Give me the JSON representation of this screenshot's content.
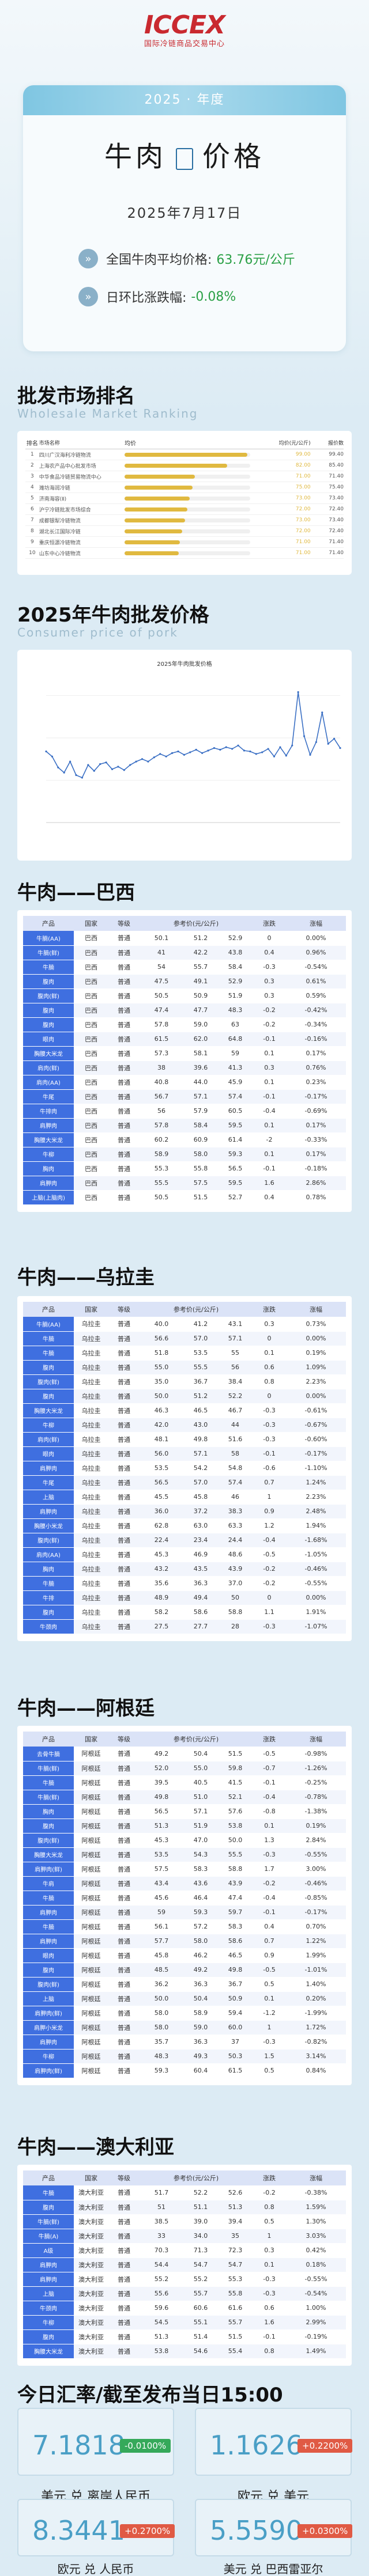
{
  "logo": {
    "mark": "ICCEX",
    "sub": "国际冷链商品交易中心"
  },
  "header": {
    "year": "2025 · 年度",
    "title_left": "牛肉",
    "title_right": "价格",
    "date": "2025年7月17日",
    "avg_label": "全国牛肉平均价格:",
    "avg_value": "63.76元/公斤",
    "chg_label": "日环比涨跌幅:",
    "chg_value": "-0.08%"
  },
  "ranking": {
    "title": "批发市场排名",
    "subtitle": "Wholesale Market Ranking",
    "headers": [
      "排名",
      "市场名称",
      "均价",
      "均价(元/公斤)",
      "报价数"
    ],
    "rows": [
      {
        "no": "1",
        "name": "四川广汉海利冷链物流",
        "fill": 0.98,
        "price": "99.00",
        "cnt": "99.40"
      },
      {
        "no": "2",
        "name": "上海农产品中心批发市场",
        "fill": 0.82,
        "price": "82.00",
        "cnt": "85.40"
      },
      {
        "no": "3",
        "name": "中华食品冷链贸易物流中心",
        "fill": 0.56,
        "price": "71.00",
        "cnt": "71.40"
      },
      {
        "no": "4",
        "name": "潍坊海润冷链",
        "fill": 0.54,
        "price": "75.00",
        "cnt": "75.40"
      },
      {
        "no": "5",
        "name": "济南海容(Ⅱ)",
        "fill": 0.52,
        "price": "73.00",
        "cnt": "73.40"
      },
      {
        "no": "6",
        "name": "沪宁冷链批发市场综合",
        "fill": 0.5,
        "price": "72.00",
        "cnt": "72.40"
      },
      {
        "no": "7",
        "name": "成都银犁冷链物流",
        "fill": 0.48,
        "price": "73.00",
        "cnt": "73.40"
      },
      {
        "no": "8",
        "name": "湖北长江国际冷链",
        "fill": 0.46,
        "price": "72.00",
        "cnt": "72.40"
      },
      {
        "no": "9",
        "name": "重庆恒源冷链物流",
        "fill": 0.44,
        "price": "71.00",
        "cnt": "71.40"
      },
      {
        "no": "10",
        "name": "山东中心冷链物流",
        "fill": 0.43,
        "price": "71.00",
        "cnt": "71.40"
      }
    ]
  },
  "trend": {
    "title": "2025年牛肉批发价格",
    "subtitle": "Consumer price of pork"
  },
  "chart_data": {
    "type": "line",
    "title": "2025年牛肉批发价格",
    "ylabel": "",
    "ylim": [
      55,
      72
    ],
    "values": [
      63.4,
      62.8,
      61.5,
      60.9,
      62.2,
      60.6,
      60.3,
      61.8,
      61.1,
      61.9,
      62.1,
      61.3,
      61.6,
      61.2,
      61.8,
      62.2,
      62.5,
      62.2,
      62.7,
      63.1,
      62.8,
      63.2,
      63.4,
      63.0,
      63.3,
      63.6,
      63.2,
      63.5,
      63.8,
      63.6,
      63.9,
      63.7,
      64.1,
      63.5,
      63.4,
      63.1,
      63.3,
      63.7,
      62.8,
      63.9,
      62.9,
      64.1,
      70.4,
      65.2,
      63.0,
      64.5,
      68.0,
      64.3,
      64.9,
      63.8
    ]
  },
  "brazil": {
    "title": "牛肉——巴西",
    "headers": [
      "产品",
      "国家",
      "等级",
      "参考价(元/公斤)",
      "",
      "",
      "涨跌",
      "涨幅"
    ],
    "rows": [
      [
        "牛腩(AA)",
        "巴西",
        "普通",
        "50.1",
        "51.2",
        "52.9",
        "0",
        "0.00%"
      ],
      [
        "牛腩(鲜)",
        "巴西",
        "普通",
        "41",
        "42.2",
        "43.8",
        "0.4",
        "0.96%"
      ],
      [
        "牛腩",
        "巴西",
        "普通",
        "54",
        "55.7",
        "58.4",
        "-0.3",
        "-0.54%"
      ],
      [
        "腹肉",
        "巴西",
        "普通",
        "47.5",
        "49.1",
        "52.9",
        "0.3",
        "0.61%"
      ],
      [
        "腹肉(鲜)",
        "巴西",
        "普通",
        "50.5",
        "50.9",
        "51.9",
        "0.3",
        "0.59%"
      ],
      [
        "腹肉",
        "巴西",
        "普通",
        "47.4",
        "47.7",
        "48.3",
        "-0.2",
        "-0.42%"
      ],
      [
        "腹肉",
        "巴西",
        "普通",
        "57.8",
        "59.0",
        "63",
        "-0.2",
        "-0.34%"
      ],
      [
        "眼肉",
        "巴西",
        "普通",
        "61.5",
        "62.0",
        "64.8",
        "-0.1",
        "-0.16%"
      ],
      [
        "胸腰大米龙",
        "巴西",
        "普通",
        "57.3",
        "58.1",
        "59",
        "0.1",
        "0.17%"
      ],
      [
        "肩肉(鲜)",
        "巴西",
        "普通",
        "38",
        "39.6",
        "41.3",
        "0.3",
        "0.76%"
      ],
      [
        "肩肉(AA)",
        "巴西",
        "普通",
        "40.8",
        "44.0",
        "45.9",
        "0.1",
        "0.23%"
      ],
      [
        "牛尾",
        "巴西",
        "普通",
        "56.7",
        "57.1",
        "57.4",
        "-0.1",
        "-0.17%"
      ],
      [
        "牛排肉",
        "巴西",
        "普通",
        "56",
        "57.9",
        "60.5",
        "-0.4",
        "-0.69%"
      ],
      [
        "肩胛肉",
        "巴西",
        "普通",
        "57.8",
        "58.4",
        "59.5",
        "0.1",
        "0.17%"
      ],
      [
        "胸腰大米龙",
        "巴西",
        "普通",
        "60.2",
        "60.9",
        "61.4",
        "-2",
        "-0.33%"
      ],
      [
        "牛柳",
        "巴西",
        "普通",
        "58.9",
        "58.0",
        "59.3",
        "0.1",
        "0.17%"
      ],
      [
        "胸肉",
        "巴西",
        "普通",
        "55.3",
        "55.8",
        "56.5",
        "-0.1",
        "-0.18%"
      ],
      [
        "肩胛肉",
        "巴西",
        "普通",
        "55.5",
        "57.5",
        "59.5",
        "1.6",
        "2.86%"
      ],
      [
        "上脑(上脑肉)",
        "巴西",
        "普通",
        "50.5",
        "51.5",
        "52.7",
        "0.4",
        "0.78%"
      ]
    ]
  },
  "uruguay": {
    "title": "牛肉——乌拉圭",
    "headers": [
      "产品",
      "国家",
      "等级",
      "参考价(元/公斤)",
      "",
      "",
      "涨跌",
      "涨幅"
    ],
    "rows": [
      [
        "牛腩(AA)",
        "乌拉圭",
        "普通",
        "40.0",
        "41.2",
        "43.1",
        "0.3",
        "0.73%"
      ],
      [
        "牛腩",
        "乌拉圭",
        "普通",
        "56.6",
        "57.0",
        "57.1",
        "0",
        "0.00%"
      ],
      [
        "牛腩",
        "乌拉圭",
        "普通",
        "51.8",
        "53.5",
        "55",
        "0.1",
        "0.19%"
      ],
      [
        "腹肉",
        "乌拉圭",
        "普通",
        "55.0",
        "55.5",
        "56",
        "0.6",
        "1.09%"
      ],
      [
        "腹肉(鲜)",
        "乌拉圭",
        "普通",
        "35.0",
        "36.7",
        "38.4",
        "0.8",
        "2.23%"
      ],
      [
        "腹肉",
        "乌拉圭",
        "普通",
        "50.0",
        "51.2",
        "52.2",
        "0",
        "0.00%"
      ],
      [
        "胸腰大米龙",
        "乌拉圭",
        "普通",
        "46.3",
        "46.5",
        "46.7",
        "-0.3",
        "-0.61%"
      ],
      [
        "牛柳",
        "乌拉圭",
        "普通",
        "42.0",
        "43.0",
        "44",
        "-0.3",
        "-0.67%"
      ],
      [
        "肩肉(鲜)",
        "乌拉圭",
        "普通",
        "48.1",
        "49.8",
        "51.6",
        "-0.3",
        "-0.60%"
      ],
      [
        "眼肉",
        "乌拉圭",
        "普通",
        "56.0",
        "57.1",
        "58",
        "-0.1",
        "-0.17%"
      ],
      [
        "肩胛肉",
        "乌拉圭",
        "普通",
        "53.5",
        "54.2",
        "54.8",
        "-0.6",
        "-1.10%"
      ],
      [
        "牛尾",
        "乌拉圭",
        "普通",
        "56.5",
        "57.0",
        "57.4",
        "0.7",
        "1.24%"
      ],
      [
        "上脑",
        "乌拉圭",
        "普通",
        "45.5",
        "45.8",
        "46",
        "1",
        "2.23%"
      ],
      [
        "肩胛肉",
        "乌拉圭",
        "普通",
        "36.0",
        "37.2",
        "38.3",
        "0.9",
        "2.48%"
      ],
      [
        "胸腰小米龙",
        "乌拉圭",
        "普通",
        "62.8",
        "63.0",
        "63.3",
        "1.2",
        "1.94%"
      ],
      [
        "腹肉(鲜)",
        "乌拉圭",
        "普通",
        "22.4",
        "23.4",
        "24.4",
        "-0.4",
        "-1.68%"
      ],
      [
        "肩肉(AA)",
        "乌拉圭",
        "普通",
        "45.3",
        "46.9",
        "48.6",
        "-0.5",
        "-1.05%"
      ],
      [
        "胸肉",
        "乌拉圭",
        "普通",
        "43.2",
        "43.5",
        "43.9",
        "-0.2",
        "-0.46%"
      ],
      [
        "牛腩",
        "乌拉圭",
        "普通",
        "35.6",
        "36.3",
        "37.0",
        "-0.2",
        "-0.55%"
      ],
      [
        "牛排",
        "乌拉圭",
        "普通",
        "48.9",
        "49.4",
        "50",
        "0",
        "0.00%"
      ],
      [
        "腹肉",
        "乌拉圭",
        "普通",
        "58.2",
        "58.6",
        "58.8",
        "1.1",
        "1.91%"
      ],
      [
        "牛颈肉",
        "乌拉圭",
        "普通",
        "27.5",
        "27.7",
        "28",
        "-0.3",
        "-1.07%"
      ]
    ]
  },
  "argentina": {
    "title": "牛肉——阿根廷",
    "headers": [
      "产品",
      "国家",
      "等级",
      "参考价(元/公斤)",
      "",
      "",
      "涨跌",
      "涨幅"
    ],
    "rows": [
      [
        "去骨牛腩",
        "阿根廷",
        "普通",
        "49.2",
        "50.4",
        "51.5",
        "-0.5",
        "-0.98%"
      ],
      [
        "牛腩(鲜)",
        "阿根廷",
        "普通",
        "52.0",
        "55.0",
        "59.8",
        "-0.7",
        "-1.26%"
      ],
      [
        "牛腩",
        "阿根廷",
        "普通",
        "39.5",
        "40.5",
        "41.5",
        "-0.1",
        "-0.25%"
      ],
      [
        "牛腩(鲜)",
        "阿根廷",
        "普通",
        "49.8",
        "51.0",
        "52.1",
        "-0.4",
        "-0.78%"
      ],
      [
        "胸肉",
        "阿根廷",
        "普通",
        "56.5",
        "57.1",
        "57.6",
        "-0.8",
        "-1.38%"
      ],
      [
        "腹肉",
        "阿根廷",
        "普通",
        "51.3",
        "51.9",
        "53.8",
        "0.1",
        "0.19%"
      ],
      [
        "腹肉(鲜)",
        "阿根廷",
        "普通",
        "45.3",
        "47.0",
        "50.0",
        "1.3",
        "2.84%"
      ],
      [
        "胸腰大米龙",
        "阿根廷",
        "普通",
        "53.5",
        "54.3",
        "55.5",
        "-0.3",
        "-0.55%"
      ],
      [
        "肩胛肉(鲜)",
        "阿根廷",
        "普通",
        "57.5",
        "58.3",
        "58.8",
        "1.7",
        "3.00%"
      ],
      [
        "牛肩",
        "阿根廷",
        "普通",
        "43.4",
        "43.6",
        "43.9",
        "-0.2",
        "-0.46%"
      ],
      [
        "牛腩",
        "阿根廷",
        "普通",
        "45.6",
        "46.4",
        "47.4",
        "-0.4",
        "-0.85%"
      ],
      [
        "肩胛肉",
        "阿根廷",
        "普通",
        "59",
        "59.3",
        "59.7",
        "-0.1",
        "-0.17%"
      ],
      [
        "牛腩",
        "阿根廷",
        "普通",
        "56.1",
        "57.2",
        "58.3",
        "0.4",
        "0.70%"
      ],
      [
        "肩胛肉",
        "阿根廷",
        "普通",
        "57.7",
        "58.0",
        "58.6",
        "0.7",
        "1.22%"
      ],
      [
        "眼肉",
        "阿根廷",
        "普通",
        "45.8",
        "46.2",
        "46.5",
        "0.9",
        "1.99%"
      ],
      [
        "腹肉",
        "阿根廷",
        "普通",
        "48.5",
        "49.2",
        "49.8",
        "-0.5",
        "-1.01%"
      ],
      [
        "腹肉(鲜)",
        "阿根廷",
        "普通",
        "36.2",
        "36.3",
        "36.7",
        "0.5",
        "1.40%"
      ],
      [
        "上脑",
        "阿根廷",
        "普通",
        "50.0",
        "50.4",
        "50.9",
        "0.1",
        "0.20%"
      ],
      [
        "肩胛肉(鲜)",
        "阿根廷",
        "普通",
        "58.0",
        "58.9",
        "59.4",
        "-1.2",
        "-1.99%"
      ],
      [
        "肩胛小米龙",
        "阿根廷",
        "普通",
        "58.0",
        "59.0",
        "60.0",
        "1",
        "1.72%"
      ],
      [
        "肩胛肉",
        "阿根廷",
        "普通",
        "35.7",
        "36.3",
        "37",
        "-0.3",
        "-0.82%"
      ],
      [
        "牛柳",
        "阿根廷",
        "普通",
        "48.3",
        "49.3",
        "50.3",
        "1.5",
        "3.14%"
      ],
      [
        "肩胛肉(鲜)",
        "阿根廷",
        "普通",
        "59.3",
        "60.4",
        "61.5",
        "0.5",
        "0.84%"
      ]
    ]
  },
  "australia": {
    "title": "牛肉——澳大利亚",
    "headers": [
      "产品",
      "国家",
      "等级",
      "参考价(元/公斤)",
      "",
      "",
      "涨跌",
      "涨幅"
    ],
    "rows": [
      [
        "牛腩",
        "澳大利亚",
        "普通",
        "51.7",
        "52.2",
        "52.6",
        "-0.2",
        "-0.38%"
      ],
      [
        "腹肉",
        "澳大利亚",
        "普通",
        "51",
        "51.1",
        "51.3",
        "0.8",
        "1.59%"
      ],
      [
        "牛腩(鲜)",
        "澳大利亚",
        "普通",
        "38.5",
        "39.0",
        "39.4",
        "0.5",
        "1.30%"
      ],
      [
        "牛腩(A)",
        "澳大利亚",
        "普通",
        "33",
        "34.0",
        "35",
        "1",
        "3.03%"
      ],
      [
        "A级",
        "澳大利亚",
        "普通",
        "70.3",
        "71.3",
        "72.3",
        "0.3",
        "0.42%"
      ],
      [
        "肩胛肉",
        "澳大利亚",
        "普通",
        "54.4",
        "54.7",
        "54.7",
        "0.1",
        "0.18%"
      ],
      [
        "肩胛肉",
        "澳大利亚",
        "普通",
        "55.2",
        "55.2",
        "55.3",
        "-0.3",
        "-0.55%"
      ],
      [
        "上脑",
        "澳大利亚",
        "普通",
        "55.6",
        "55.7",
        "55.8",
        "-0.3",
        "-0.54%"
      ],
      [
        "牛颈肉",
        "澳大利亚",
        "普通",
        "59.6",
        "60.6",
        "61.6",
        "0.6",
        "1.00%"
      ],
      [
        "牛柳",
        "澳大利亚",
        "普通",
        "54.5",
        "55.1",
        "55.7",
        "1.6",
        "2.99%"
      ],
      [
        "腹肉",
        "澳大利亚",
        "普通",
        "51.3",
        "51.4",
        "51.5",
        "-0.1",
        "-0.19%"
      ],
      [
        "胸腰大米龙",
        "澳大利亚",
        "普通",
        "53.8",
        "54.6",
        "55.4",
        "0.8",
        "1.49%"
      ]
    ]
  },
  "fx": {
    "title": "今日汇率/截至发布当日15:00",
    "items": [
      {
        "value": "7.1818",
        "change": "-0.0100%",
        "label": "美元 兑 离岸人民币",
        "dir": "down"
      },
      {
        "value": "1.1626",
        "change": "+0.2200%",
        "label": "欧元 兑 美元",
        "dir": "up"
      },
      {
        "value": "8.3441",
        "change": "+0.2700%",
        "label": "欧元 兑 人民币",
        "dir": "up"
      },
      {
        "value": "5.5590",
        "change": "+0.0300%",
        "label": "美元 兑 巴西雷亚尔",
        "dir": "up"
      }
    ]
  }
}
